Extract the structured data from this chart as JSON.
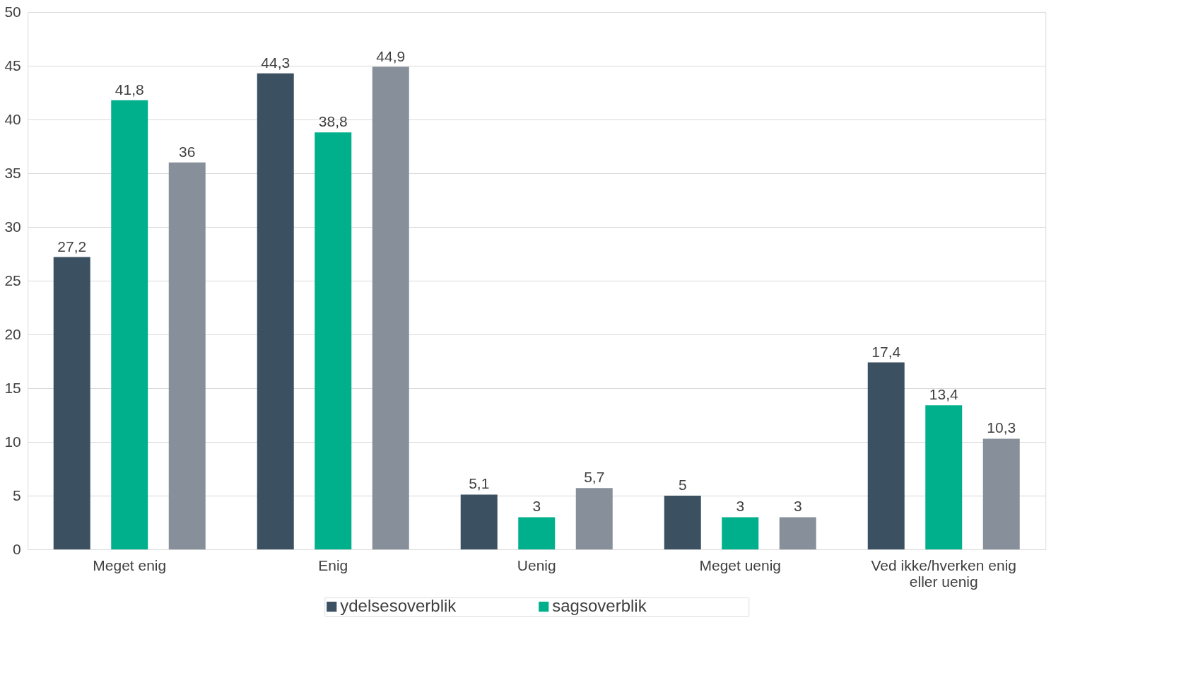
{
  "chart_data": {
    "type": "bar",
    "categories": [
      "Meget enig",
      "Enig",
      "Uenig",
      "Meget uenig",
      "Ved ikke/hverken enig eller uenig"
    ],
    "series": [
      {
        "name": "ydelsesoverblik",
        "color": "#3b5162",
        "values": [
          27.2,
          44.3,
          5.1,
          5,
          17.4
        ],
        "value_labels": [
          "27,2",
          "44,3",
          "5,1",
          "5",
          "17,4"
        ]
      },
      {
        "name": "sagsoverblik",
        "color": "#00b08c",
        "values": [
          41.8,
          38.8,
          3,
          3,
          13.4
        ],
        "value_labels": [
          "41,8",
          "38,8",
          "3",
          "3",
          "13,4"
        ]
      },
      {
        "color": "#87909a",
        "values": [
          36,
          44.9,
          5.7,
          3,
          10.3
        ],
        "value_labels": [
          "36",
          "44,9",
          "5,7",
          "3",
          "10,3"
        ]
      }
    ],
    "ylim": [
      0,
      50
    ],
    "yticks": [
      0,
      5,
      10,
      15,
      20,
      25,
      30,
      35,
      40,
      45,
      50
    ],
    "grid": "y",
    "legend": "bottom"
  }
}
